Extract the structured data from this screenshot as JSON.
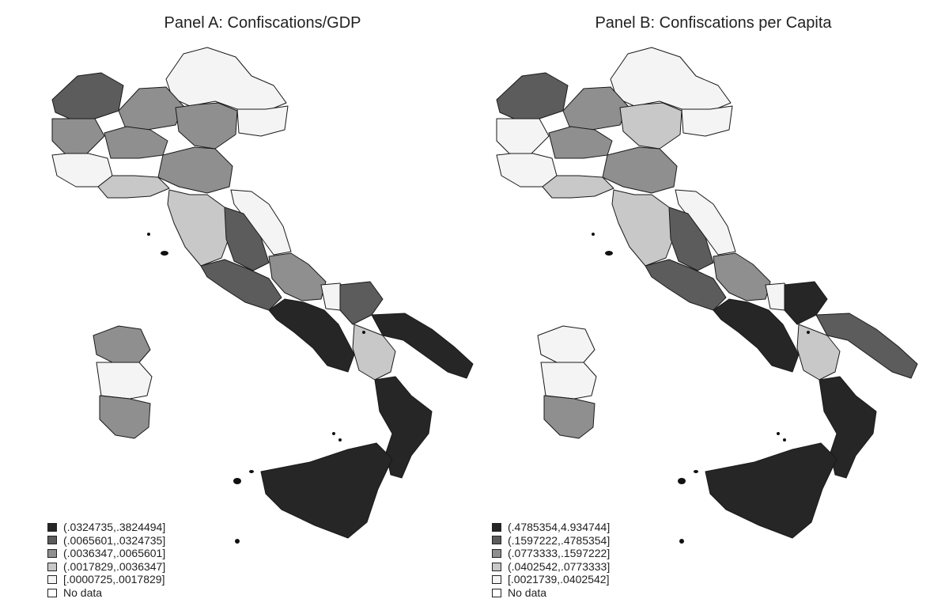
{
  "palette": {
    "c1": "#262626",
    "c2": "#5c5c5c",
    "c3": "#8f8f8f",
    "c4": "#c8c8c8",
    "c5": "#f4f4f4",
    "nodata": "#ffffff"
  },
  "panels": [
    {
      "title": "Panel A: Confiscations/GDP",
      "legend": [
        {
          "label": "(.0324735,.3824494]",
          "class": "c1"
        },
        {
          "label": "(.0065601,.0324735]",
          "class": "c2"
        },
        {
          "label": "(.0036347,.0065601]",
          "class": "c3"
        },
        {
          "label": "(.0017829,.0036347]",
          "class": "c4"
        },
        {
          "label": "[.0000725,.0017829]",
          "class": "c5"
        },
        {
          "label": "No data",
          "class": "nodata"
        }
      ],
      "areas": {
        "alps_north": "c5",
        "northwest": "c2",
        "northwest_lower": "c3",
        "piedmont_south": "c5",
        "lombardy_mid": "c3",
        "lombardy_south": "c3",
        "veneto": "c3",
        "friuli": "c5",
        "emilia": "c3",
        "liguria": "c4",
        "tuscany": "c4",
        "marche": "c5",
        "umbria_lazio_north": "c2",
        "lazio_south": "c2",
        "abruzzo": "c3",
        "molise": "c5",
        "campania": "c1",
        "apulia_north": "c2",
        "apulia_south": "c1",
        "basilicata": "c4",
        "calabria": "c1",
        "sicily": "c1",
        "sardinia_north": "c3",
        "sardinia_mid": "c5",
        "sardinia_south": "c3"
      }
    },
    {
      "title": "Panel B: Confiscations per Capita",
      "legend": [
        {
          "label": "(.4785354,4.934744]",
          "class": "c1"
        },
        {
          "label": "(.1597222,.4785354]",
          "class": "c2"
        },
        {
          "label": "(.0773333,.1597222]",
          "class": "c3"
        },
        {
          "label": "(.0402542,.0773333]",
          "class": "c4"
        },
        {
          "label": "[.0021739,.0402542]",
          "class": "c5"
        },
        {
          "label": "No data",
          "class": "nodata"
        }
      ],
      "areas": {
        "alps_north": "c5",
        "northwest": "c2",
        "northwest_lower": "c5",
        "piedmont_south": "c5",
        "lombardy_mid": "c3",
        "lombardy_south": "c3",
        "veneto": "c4",
        "friuli": "c5",
        "emilia": "c3",
        "liguria": "c4",
        "tuscany": "c4",
        "marche": "c5",
        "umbria_lazio_north": "c2",
        "lazio_south": "c2",
        "abruzzo": "c3",
        "molise": "c5",
        "campania": "c1",
        "apulia_north": "c1",
        "apulia_south": "c2",
        "basilicata": "c4",
        "calabria": "c1",
        "sicily": "c1",
        "sardinia_north": "c5",
        "sardinia_mid": "c5",
        "sardinia_south": "c3"
      }
    }
  ]
}
